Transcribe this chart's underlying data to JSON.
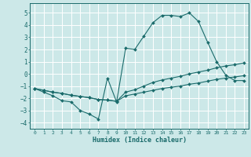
{
  "xlabel": "Humidex (Indice chaleur)",
  "xlim": [
    -0.5,
    23.5
  ],
  "ylim": [
    -4.5,
    5.8
  ],
  "xticks": [
    0,
    1,
    2,
    3,
    4,
    5,
    6,
    7,
    8,
    9,
    10,
    11,
    12,
    13,
    14,
    15,
    16,
    17,
    18,
    19,
    20,
    21,
    22,
    23
  ],
  "yticks": [
    -4,
    -3,
    -2,
    -1,
    0,
    1,
    2,
    3,
    4,
    5
  ],
  "bg_color": "#cce8e8",
  "grid_color": "#ffffff",
  "line_color": "#1a6b6b",
  "line1_x": [
    0,
    1,
    2,
    3,
    4,
    5,
    6,
    7,
    8,
    9,
    10,
    11,
    12,
    13,
    14,
    15,
    16,
    17,
    18,
    19,
    20,
    21,
    22,
    23
  ],
  "line1_y": [
    -1.2,
    -1.5,
    -1.8,
    -2.2,
    -2.3,
    -3.0,
    -3.3,
    -3.7,
    -0.35,
    -2.3,
    2.1,
    2.0,
    3.1,
    4.2,
    4.8,
    4.8,
    4.7,
    5.0,
    4.3,
    2.6,
    1.0,
    -0.1,
    -0.55,
    -0.55
  ],
  "line2_x": [
    0,
    1,
    2,
    3,
    4,
    5,
    6,
    7,
    8,
    9,
    10,
    11,
    12,
    13,
    14,
    15,
    16,
    17,
    18,
    19,
    20,
    21,
    22,
    23
  ],
  "line2_y": [
    -1.2,
    -1.35,
    -1.5,
    -1.6,
    -1.75,
    -1.85,
    -1.95,
    -2.1,
    -2.15,
    -2.25,
    -1.8,
    -1.65,
    -1.5,
    -1.35,
    -1.2,
    -1.1,
    -1.0,
    -0.85,
    -0.75,
    -0.6,
    -0.45,
    -0.35,
    -0.25,
    -0.15
  ],
  "line3_x": [
    0,
    1,
    2,
    3,
    4,
    5,
    6,
    7,
    8,
    9,
    10,
    11,
    12,
    13,
    14,
    15,
    16,
    17,
    18,
    19,
    20,
    21,
    22,
    23
  ],
  "line3_y": [
    -1.2,
    -1.35,
    -1.5,
    -1.6,
    -1.75,
    -1.85,
    -1.95,
    -2.1,
    -2.15,
    -2.25,
    -1.5,
    -1.3,
    -1.0,
    -0.7,
    -0.5,
    -0.35,
    -0.2,
    0.0,
    0.15,
    0.3,
    0.5,
    0.65,
    0.75,
    0.9
  ]
}
